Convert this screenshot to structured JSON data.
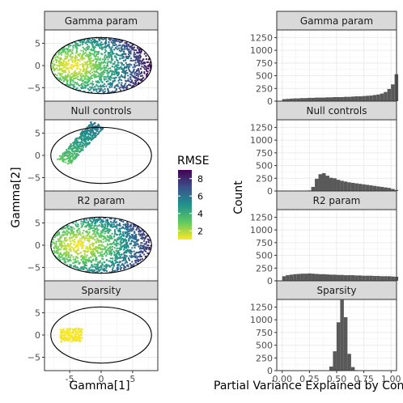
{
  "chart_data": [
    {
      "type": "scatter",
      "panel": "left",
      "facets": [
        "Gamma param",
        "Null controls",
        "R2 param",
        "Sparsity"
      ],
      "xlabel": "Gamma[1]",
      "ylabel": "Gamma[2]",
      "xlim": [
        -9,
        9
      ],
      "ylim": [
        -8,
        8
      ],
      "x_ticks": [
        "-5",
        "0",
        "5"
      ],
      "x_tick_values": [
        -5,
        0,
        5
      ],
      "y_ticks": [
        "5",
        "0",
        "−5"
      ],
      "y_tick_values": [
        5,
        0,
        -5
      ],
      "ellipse": {
        "center": [
          0,
          0
        ],
        "radius_x": 8,
        "radius_y": 6.3
      },
      "color_legend": {
        "title": "RMSE",
        "ticks": [
          "8",
          "6",
          "4",
          "2"
        ],
        "tick_values": [
          8,
          6,
          4,
          2
        ],
        "range": [
          1,
          9
        ],
        "low_color": "#fde725",
        "mid_color": "#21918c",
        "high_color": "#440154"
      },
      "clouds": [
        {
          "facet": "Gamma param",
          "shape": "ellipse",
          "center": [
            0,
            0
          ],
          "rx": 8,
          "ry": 6.3,
          "rmse_low": 1,
          "rmse_high": 9,
          "low_at": [
            -4.5,
            0
          ]
        },
        {
          "facet": "Null controls",
          "shape": "band",
          "from": [
            -6,
            -1.5
          ],
          "to": [
            -0.5,
            7
          ],
          "width": 1.2,
          "rmse_low": 3,
          "rmse_high": 6
        },
        {
          "facet": "R2 param",
          "shape": "ellipse",
          "center": [
            0,
            0
          ],
          "rx": 8,
          "ry": 6.3,
          "rmse_low": 1,
          "rmse_high": 9,
          "low_at": [
            -3.5,
            0
          ]
        },
        {
          "facet": "Sparsity",
          "shape": "box",
          "x": [
            -6.5,
            -3
          ],
          "y": [
            -1.5,
            1.5
          ],
          "rmse_low": 1,
          "rmse_high": 1.2
        }
      ]
    },
    {
      "type": "bar",
      "panel": "right",
      "facets": [
        "Gamma param",
        "Null controls",
        "R2 param",
        "Sparsity"
      ],
      "xlabel": "Partial Variance Explained by Confounders",
      "ylabel": "Count",
      "xlim": [
        -0.05,
        1.05
      ],
      "ylim": [
        0,
        1400
      ],
      "x_ticks": [
        "0.00",
        "0.25",
        "0.50",
        "0.75",
        "1.00"
      ],
      "x_tick_values": [
        0,
        0.25,
        0.5,
        0.75,
        1
      ],
      "y_ticks": [
        "0",
        "250",
        "500",
        "750",
        "1000",
        "1250"
      ],
      "y_tick_values": [
        0,
        250,
        500,
        750,
        1000,
        1250
      ],
      "bin_width": 0.0333,
      "bin_start": 0,
      "bar_color": "#595959",
      "series": [
        {
          "name": "Gamma param",
          "values": [
            40,
            45,
            50,
            55,
            55,
            60,
            60,
            65,
            65,
            70,
            70,
            70,
            75,
            75,
            80,
            80,
            80,
            85,
            85,
            90,
            95,
            95,
            100,
            105,
            110,
            120,
            130,
            150,
            180,
            240,
            330,
            530
          ]
        },
        {
          "name": "Null controls",
          "values": [
            0,
            0,
            0,
            0,
            0,
            0,
            0,
            10,
            80,
            240,
            330,
            350,
            300,
            260,
            250,
            220,
            200,
            185,
            170,
            160,
            150,
            140,
            130,
            120,
            110,
            100,
            90,
            80,
            70,
            60,
            40,
            20
          ]
        },
        {
          "name": "R2 param",
          "values": [
            90,
            110,
            120,
            130,
            135,
            140,
            140,
            145,
            140,
            135,
            130,
            130,
            125,
            120,
            120,
            115,
            115,
            110,
            110,
            110,
            105,
            105,
            100,
            100,
            100,
            95,
            95,
            90,
            90,
            90,
            85,
            80
          ]
        },
        {
          "name": "Sparsity",
          "values": [
            0,
            0,
            0,
            0,
            0,
            0,
            0,
            0,
            0,
            0,
            0,
            0,
            5,
            80,
            380,
            950,
            1390,
            1050,
            330,
            70,
            10,
            0,
            0,
            0,
            0,
            0,
            0,
            0,
            0,
            0,
            0,
            0
          ]
        }
      ]
    }
  ]
}
